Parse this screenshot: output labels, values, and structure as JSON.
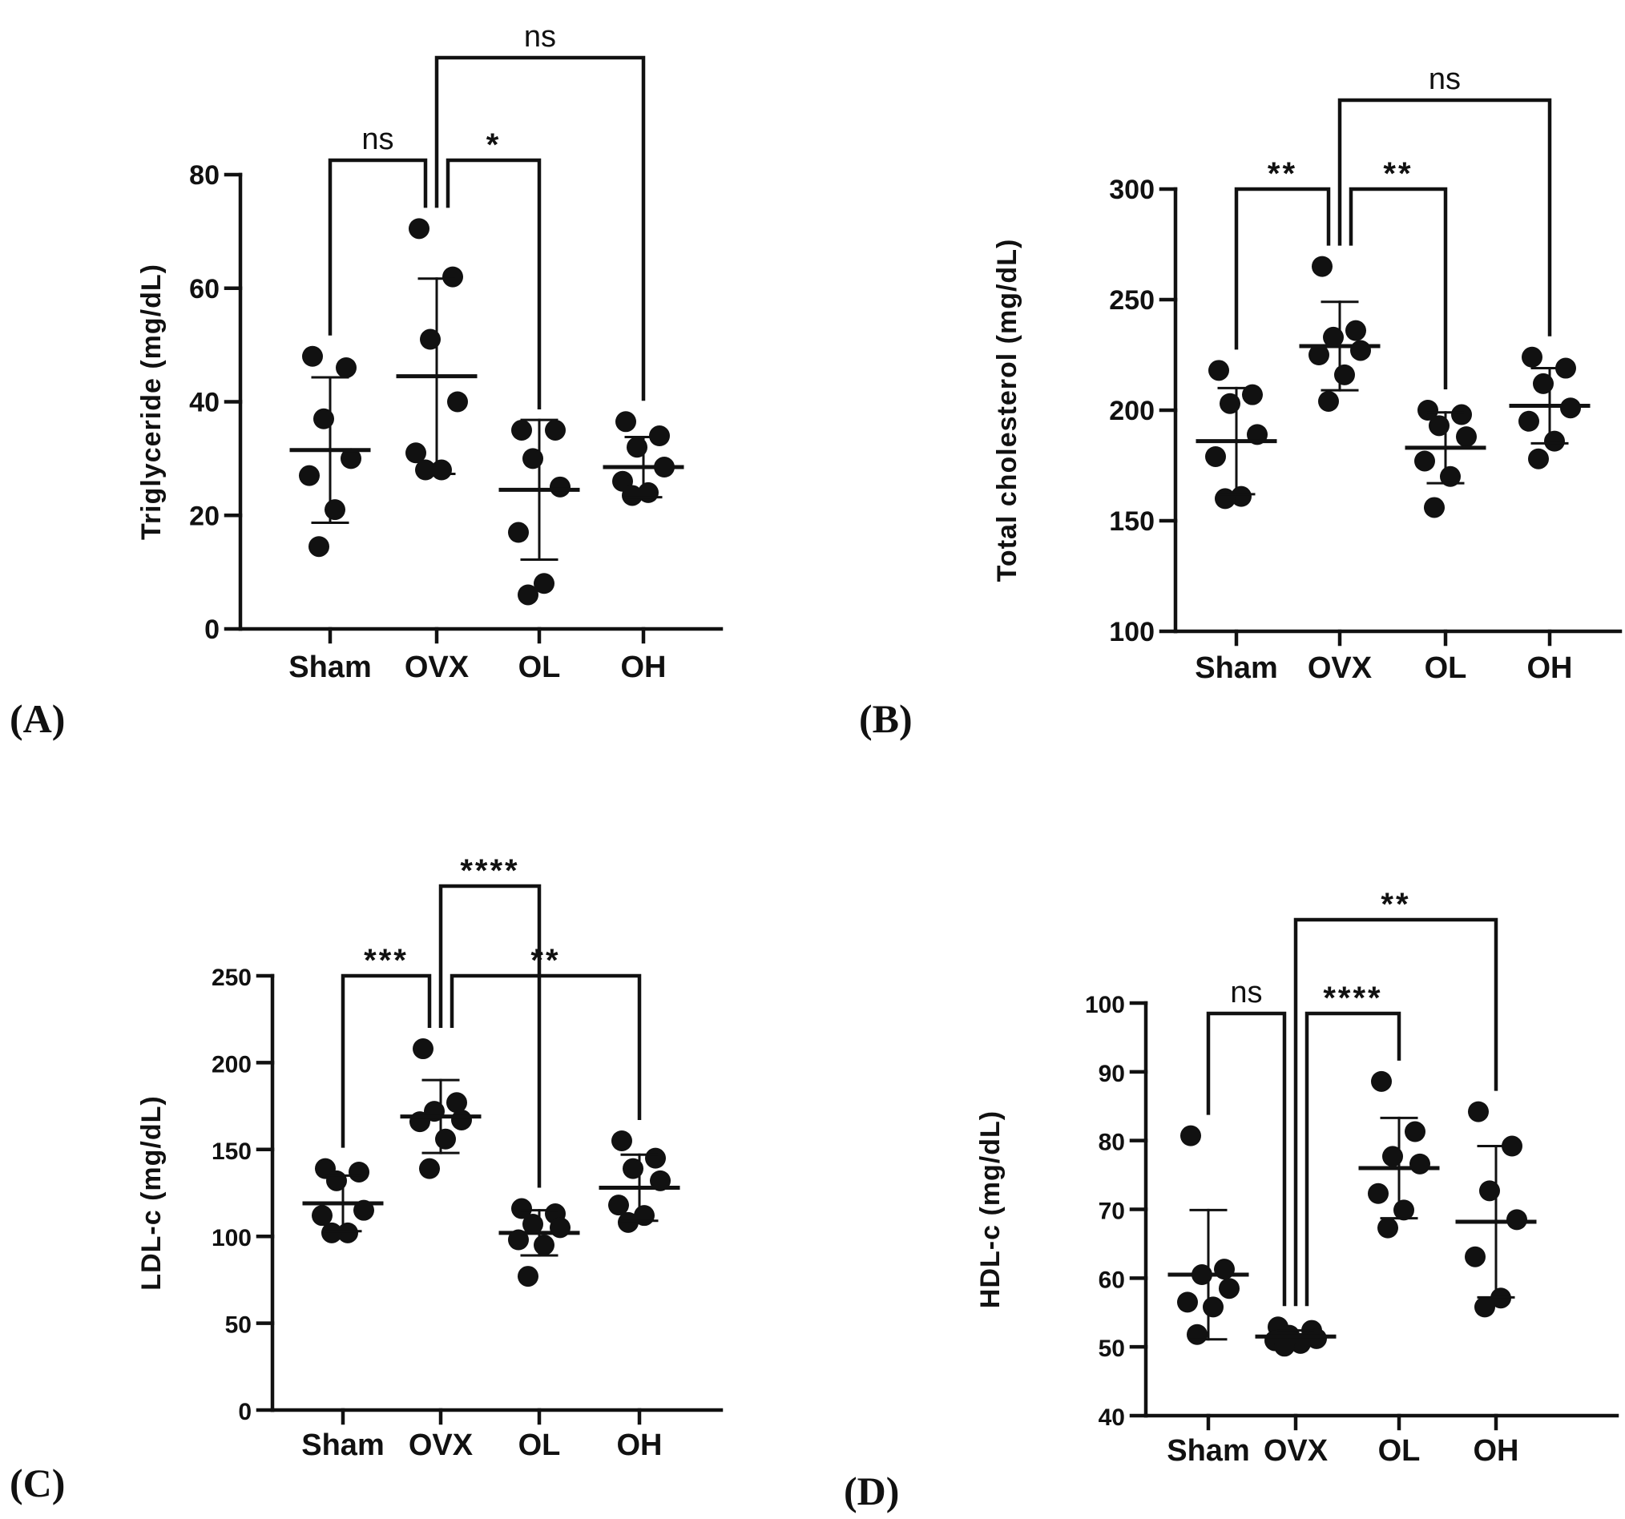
{
  "chart_data": [
    {
      "type": "scatter",
      "panel_label": "(A)",
      "ylabel": "Triglyceride (mg/dL)",
      "ylim": [
        0,
        80
      ],
      "yticks": [
        "0",
        "20",
        "40",
        "60",
        "80"
      ],
      "categories": [
        "Sham",
        "OVX",
        "OL",
        "OH"
      ],
      "points": [
        [
          48,
          46,
          37,
          30,
          27,
          21,
          14.5
        ],
        [
          70.5,
          62,
          51,
          40,
          31,
          28,
          28
        ],
        [
          35,
          35,
          30,
          25,
          17,
          8,
          6
        ],
        [
          36.5,
          34,
          32,
          28.5,
          26,
          24,
          23.5
        ]
      ],
      "means": [
        31.5,
        44.5,
        24.5,
        28.5
      ],
      "sd": [
        12.8,
        17.2,
        12.3,
        5.3
      ],
      "comparisons": [
        {
          "from": 0,
          "to": 1,
          "label": "ns",
          "level": 1
        },
        {
          "from": 1,
          "to": 2,
          "label": "*",
          "level": 1
        },
        {
          "from": 1,
          "to": 3,
          "label": "ns",
          "level": 2
        }
      ]
    },
    {
      "type": "scatter",
      "panel_label": "(B)",
      "ylabel": "Total cholesterol (mg/dL)",
      "ylim": [
        100,
        300
      ],
      "yticks": [
        "100",
        "150",
        "200",
        "250",
        "300"
      ],
      "categories": [
        "Sham",
        "OVX",
        "OL",
        "OH"
      ],
      "points": [
        [
          218,
          207,
          203,
          189,
          179,
          161,
          160
        ],
        [
          265,
          236,
          233,
          227,
          225,
          216,
          204
        ],
        [
          200,
          198,
          193,
          188,
          177,
          170,
          156
        ],
        [
          224,
          219,
          212,
          201,
          195,
          186,
          178
        ]
      ],
      "means": [
        186,
        229,
        183,
        202
      ],
      "sd": [
        24,
        20,
        16,
        17
      ],
      "comparisons": [
        {
          "from": 0,
          "to": 1,
          "label": "**",
          "level": 1
        },
        {
          "from": 1,
          "to": 2,
          "label": "**",
          "level": 1
        },
        {
          "from": 1,
          "to": 3,
          "label": "ns",
          "level": 2
        }
      ]
    },
    {
      "type": "scatter",
      "panel_label": "(C)",
      "ylabel": "LDL-c (mg/dL)",
      "ylim": [
        0,
        250
      ],
      "yticks": [
        "0",
        "50",
        "100",
        "150",
        "200",
        "250"
      ],
      "categories": [
        "Sham",
        "OVX",
        "OL",
        "OH"
      ],
      "points": [
        [
          139,
          137,
          132,
          115,
          112,
          102,
          102
        ],
        [
          208,
          177,
          172,
          167,
          166,
          156,
          139
        ],
        [
          116,
          113,
          107,
          105,
          98,
          95,
          77
        ],
        [
          155,
          145,
          139,
          132,
          118,
          112,
          108
        ]
      ],
      "means": [
        119,
        169,
        102,
        128
      ],
      "sd": [
        16,
        21,
        13,
        19
      ],
      "comparisons": [
        {
          "from": 0,
          "to": 1,
          "label": "***",
          "level": 1
        },
        {
          "from": 1,
          "to": 3,
          "label": "**",
          "level": 1
        },
        {
          "from": 1,
          "to": 2,
          "label": "****",
          "level": 2
        }
      ]
    },
    {
      "type": "scatter",
      "panel_label": "(D)",
      "ylabel": "HDL-c (mg/dL)",
      "ylim": [
        40,
        100
      ],
      "yticks": [
        "40",
        "50",
        "60",
        "70",
        "80",
        "90",
        "100"
      ],
      "categories": [
        "Sham",
        "OVX",
        "OL",
        "OH"
      ],
      "points": [
        [
          80.7,
          61.3,
          60.5,
          58.5,
          56.5,
          55.8,
          51.8
        ],
        [
          52.9,
          52.4,
          51.7,
          51.2,
          50.9,
          50.5,
          50.1
        ],
        [
          88.6,
          81.3,
          77.7,
          76.6,
          72.3,
          69.9,
          67.3
        ],
        [
          84.2,
          79.2,
          72.7,
          68.5,
          63.1,
          57.1,
          55.8
        ]
      ],
      "means": [
        60.5,
        51.5,
        76.0,
        68.2
      ],
      "sd": [
        9.4,
        0.9,
        7.3,
        11.0
      ],
      "comparisons": [
        {
          "from": 0,
          "to": 1,
          "label": "ns",
          "level": 1
        },
        {
          "from": 1,
          "to": 2,
          "label": "****",
          "level": 1
        },
        {
          "from": 1,
          "to": 3,
          "label": "**",
          "level": 2
        }
      ]
    }
  ]
}
